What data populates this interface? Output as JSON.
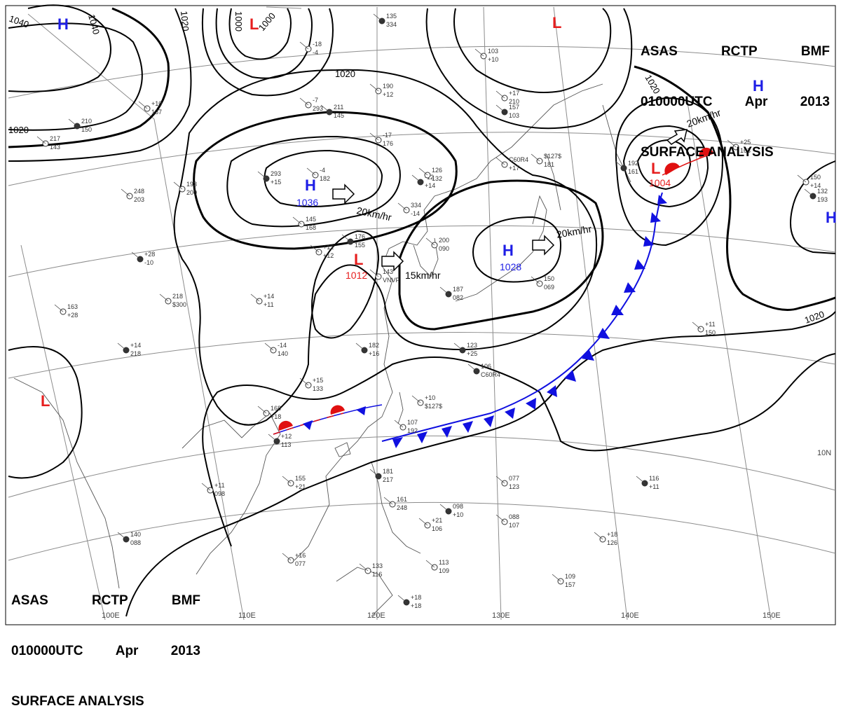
{
  "title": {
    "agency": "ASAS",
    "station": "RCTP",
    "office": "BMF",
    "time": "010000UTC",
    "month": "Apr",
    "year": "2013",
    "product": "SURFACE ANALYSIS"
  },
  "pressure_centers": [
    {
      "type": "H",
      "value": "",
      "name": "high-nw"
    },
    {
      "type": "L",
      "value": "",
      "name": "low-north"
    },
    {
      "type": "L",
      "value": "",
      "name": "low-ne-top"
    },
    {
      "type": "H",
      "value": "",
      "name": "high-ne"
    },
    {
      "type": "H",
      "value": "1036",
      "name": "high-mongolia"
    },
    {
      "type": "L",
      "value": "1012",
      "name": "low-east-china"
    },
    {
      "type": "H",
      "value": "1028",
      "name": "high-japan"
    },
    {
      "type": "L",
      "value": "1004",
      "name": "low-pacific"
    },
    {
      "type": "L",
      "value": "",
      "name": "low-india"
    },
    {
      "type": "H",
      "value": "",
      "name": "high-east-edge"
    }
  ],
  "isobar_labels": [
    "1040",
    "1040",
    "1020",
    "1000",
    "1000",
    "1020",
    "1020",
    "1020",
    "1020"
  ],
  "motion_labels": [
    "20km/hr",
    "15km/hr",
    "20km/hr",
    "20km/hr"
  ],
  "longitude_labels": [
    "100E",
    "110E",
    "120E",
    "130E",
    "140E",
    "150E"
  ],
  "latitude_labels": [
    "10N"
  ],
  "station_samples": [
    "135",
    "-18",
    "-7",
    "211",
    "190",
    "-17",
    "-12",
    "334",
    "-4",
    "293",
    "145",
    "+12",
    "176",
    "+14",
    "-14",
    "182",
    "+15",
    "168",
    "+12",
    "155",
    "+11",
    "140",
    "+16",
    "133",
    "+18",
    "113",
    "+21",
    "098",
    "088",
    "077",
    "116",
    "+18",
    "109",
    "106",
    "+10",
    "107",
    "123",
    "+11",
    "126",
    "157",
    "C60R4",
    "$127$",
    "192",
    "+25",
    "150",
    "132",
    "103",
    "+17",
    "181",
    "161",
    "163",
    "+14",
    "193",
    "+10",
    "210",
    "217",
    "248",
    "+28",
    "218",
    "200",
    "187",
    "150",
    "143",
    "203",
    "-10",
    "$300",
    "090",
    "082",
    "069",
    "VNVF"
  ],
  "colors": {
    "isobar": "#000000",
    "grid": "#8c8c8c",
    "coast": "#555555",
    "high": "#1e1ee6",
    "low": "#e61e1e",
    "cold_front": "#1010e0",
    "warm_front": "#e01010"
  }
}
